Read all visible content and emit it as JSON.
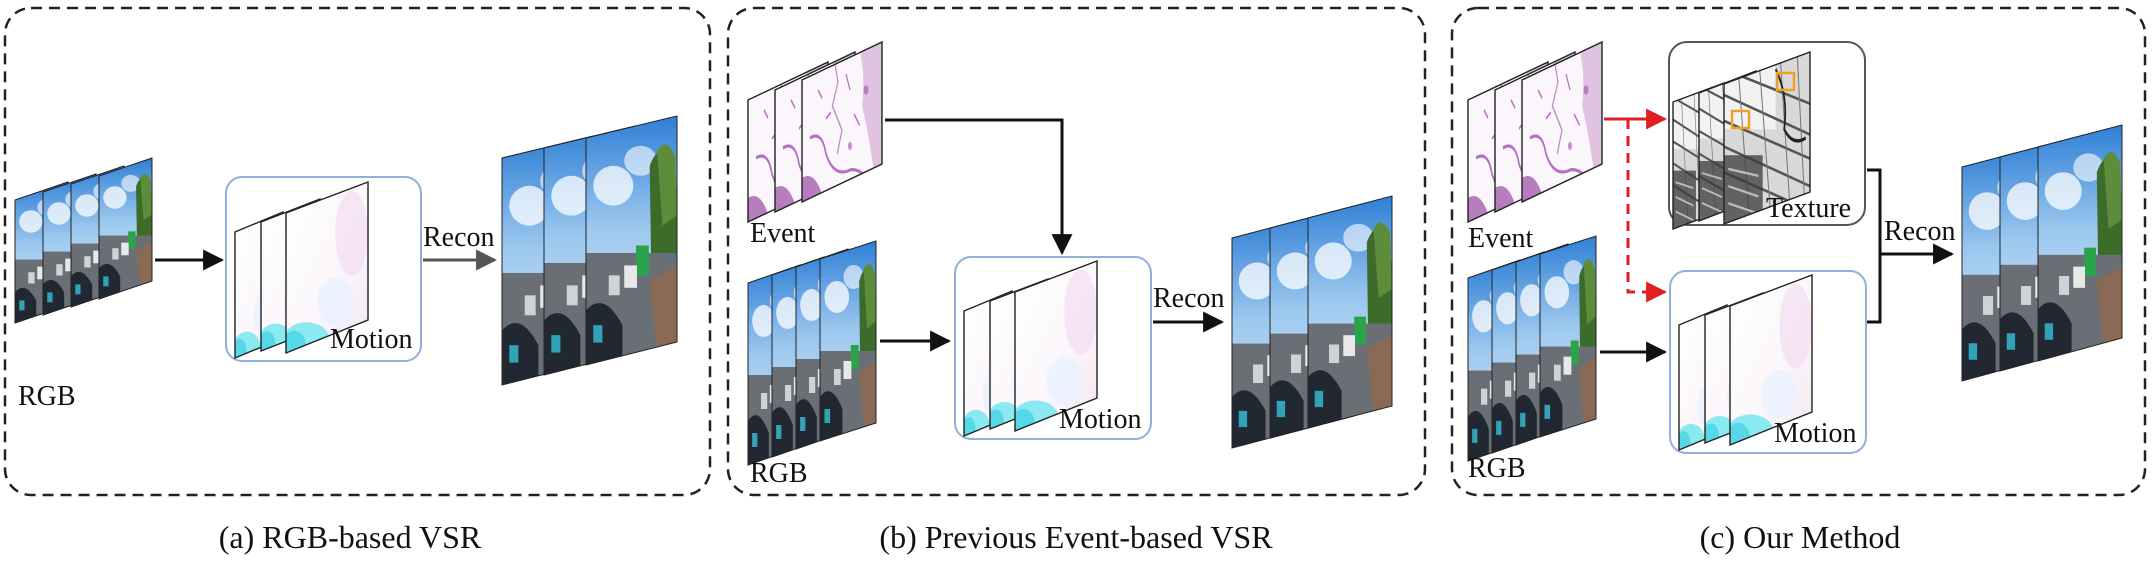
{
  "panels": [
    {
      "caption": "(a) RGB-based VSR",
      "labels": {
        "rgb": "RGB",
        "motion": "Motion",
        "recon": "Recon"
      }
    },
    {
      "caption": "(b) Previous Event-based VSR",
      "labels": {
        "event": "Event",
        "rgb": "RGB",
        "motion": "Motion",
        "recon": "Recon"
      }
    },
    {
      "caption": "(c) Our Method",
      "labels": {
        "event": "Event",
        "rgb": "RGB",
        "texture": "Texture",
        "motion": "Motion",
        "recon": "Recon"
      }
    }
  ],
  "colors": {
    "border": "#222222",
    "module_border": "#8fb0d8",
    "texture_border": "#555555",
    "arrow": "#111111",
    "arrow_gray": "#555555",
    "arrow_red": "#e02020",
    "highlight": "#f0a020"
  }
}
